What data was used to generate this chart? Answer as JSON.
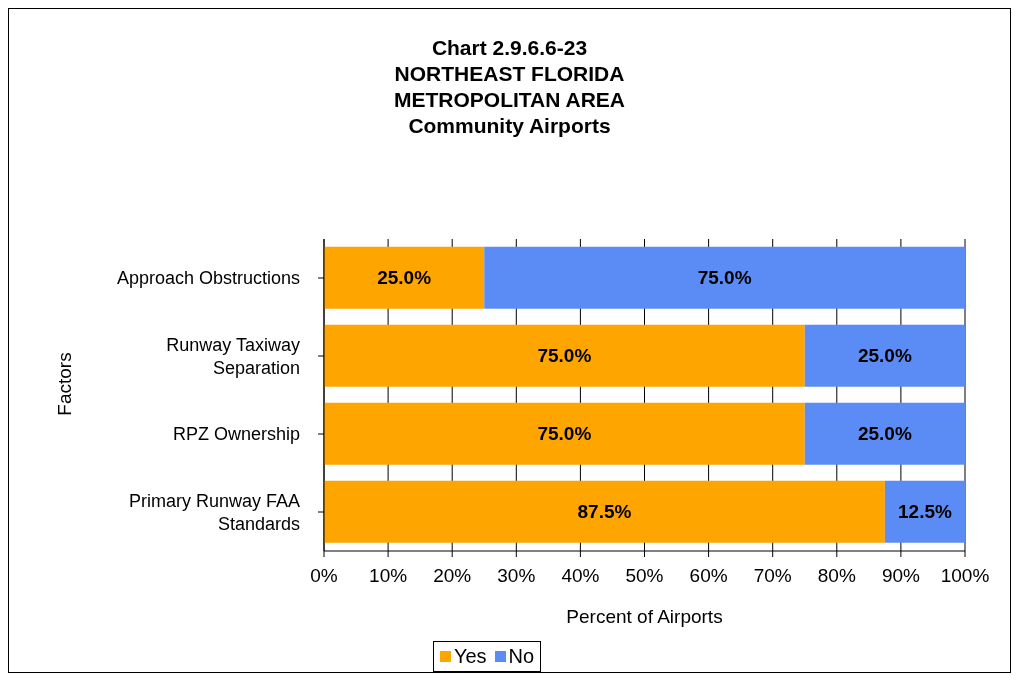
{
  "chart_data": {
    "type": "bar",
    "orientation": "horizontal",
    "stacked": true,
    "title": "Chart 2.9.6.6-23\nNORTHEAST FLORIDA\nMETROPOLITAN AREA\nCommunity Airports",
    "xlabel": "Percent of Airports",
    "ylabel": "Factors",
    "categories": [
      "Approach Obstructions",
      "Runway Taxiway Separation",
      "RPZ Ownership",
      "Primary Runway FAA Standards"
    ],
    "series": [
      {
        "name": "Yes",
        "color": "#ffa500",
        "values": [
          25,
          75,
          75,
          87.5
        ],
        "value_labels": [
          "25.0%",
          "75.0%",
          "75.0%",
          "87.5%"
        ]
      },
      {
        "name": "No",
        "color": "#5b8cf5",
        "values": [
          75,
          25,
          25,
          12.5
        ],
        "value_labels": [
          "75.0%",
          "25.0%",
          "25.0%",
          "12.5%"
        ]
      }
    ],
    "xlim": [
      0,
      100
    ],
    "xticks": [
      {
        "value": 0,
        "label": "0%"
      },
      {
        "value": 10,
        "label": "10%"
      },
      {
        "value": 20,
        "label": "20%"
      },
      {
        "value": 30,
        "label": "30%"
      },
      {
        "value": 40,
        "label": "40%"
      },
      {
        "value": 50,
        "label": "50%"
      },
      {
        "value": 60,
        "label": "60%"
      },
      {
        "value": 70,
        "label": "70%"
      },
      {
        "value": 80,
        "label": "80%"
      },
      {
        "value": 90,
        "label": "90%"
      },
      {
        "value": 100,
        "label": "100%"
      }
    ],
    "grid": "x",
    "legend": "bottom"
  }
}
